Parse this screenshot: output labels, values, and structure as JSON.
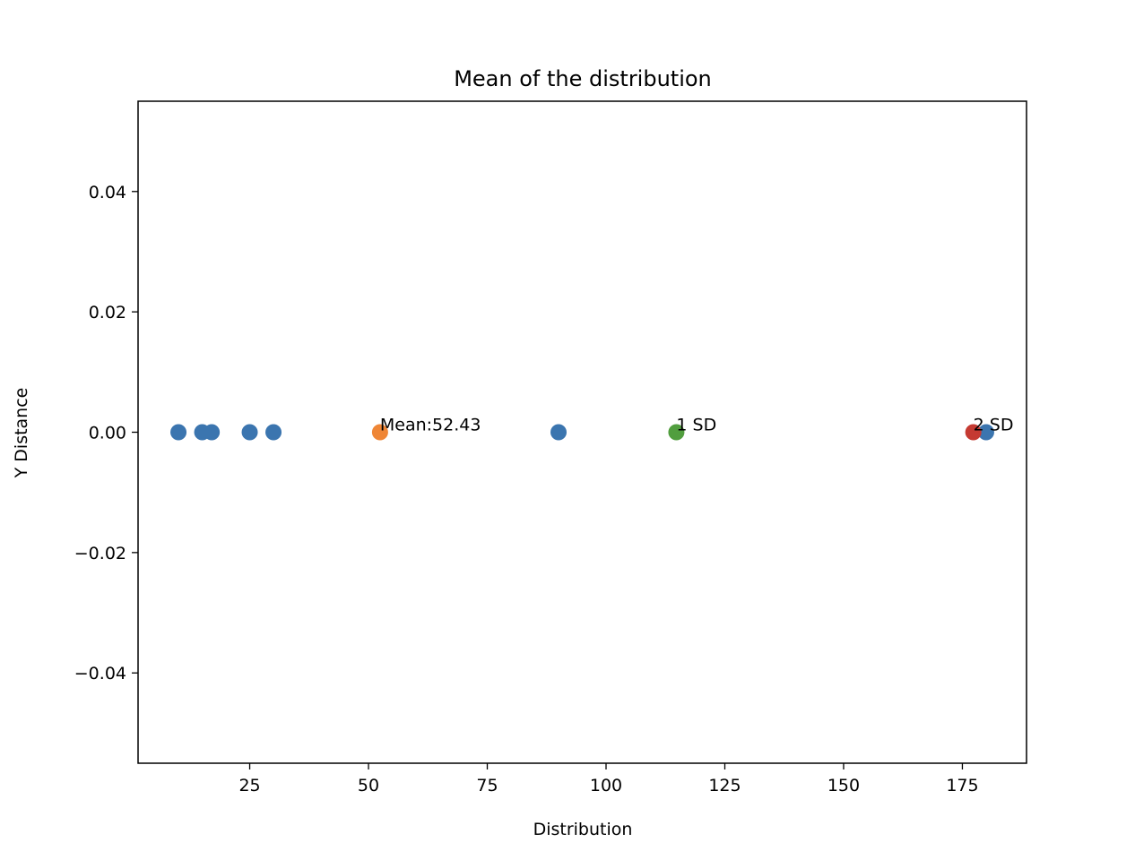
{
  "chart_data": {
    "type": "scatter",
    "title": "Mean of the distribution",
    "xlabel": "Distribution",
    "ylabel": "Y Distance",
    "xlim": [
      1.5,
      188.5
    ],
    "ylim": [
      -0.055,
      0.055
    ],
    "grid": false,
    "x_ticks": [
      {
        "value": 25,
        "label": "25"
      },
      {
        "value": 50,
        "label": "50"
      },
      {
        "value": 75,
        "label": "75"
      },
      {
        "value": 100,
        "label": "100"
      },
      {
        "value": 125,
        "label": "125"
      },
      {
        "value": 150,
        "label": "150"
      },
      {
        "value": 175,
        "label": "175"
      }
    ],
    "y_ticks": [
      {
        "value": 0.04,
        "label": "0.04"
      },
      {
        "value": 0.02,
        "label": "0.02"
      },
      {
        "value": 0.0,
        "label": "0.00"
      },
      {
        "value": -0.02,
        "label": "−0.02"
      },
      {
        "value": -0.04,
        "label": "−0.04"
      }
    ],
    "series": [
      {
        "color": "#3b75af",
        "points": [
          [
            10,
            0
          ],
          [
            15,
            0
          ],
          [
            17,
            0
          ],
          [
            25,
            0
          ],
          [
            30,
            0
          ],
          [
            90,
            0
          ],
          [
            180,
            0
          ]
        ]
      },
      {
        "color": "#ef8636",
        "points": [
          [
            52.43,
            0
          ]
        ]
      },
      {
        "color": "#519e3e",
        "points": [
          [
            114.8,
            0
          ]
        ]
      },
      {
        "color": "#c53a32",
        "points": [
          [
            177.3,
            0
          ]
        ]
      }
    ],
    "annotations": [
      {
        "text": "Mean:52.43",
        "x": 52.43,
        "y": 0
      },
      {
        "text": "1 SD",
        "x": 114.8,
        "y": 0
      },
      {
        "text": "2 SD",
        "x": 177.3,
        "y": 0
      }
    ]
  }
}
